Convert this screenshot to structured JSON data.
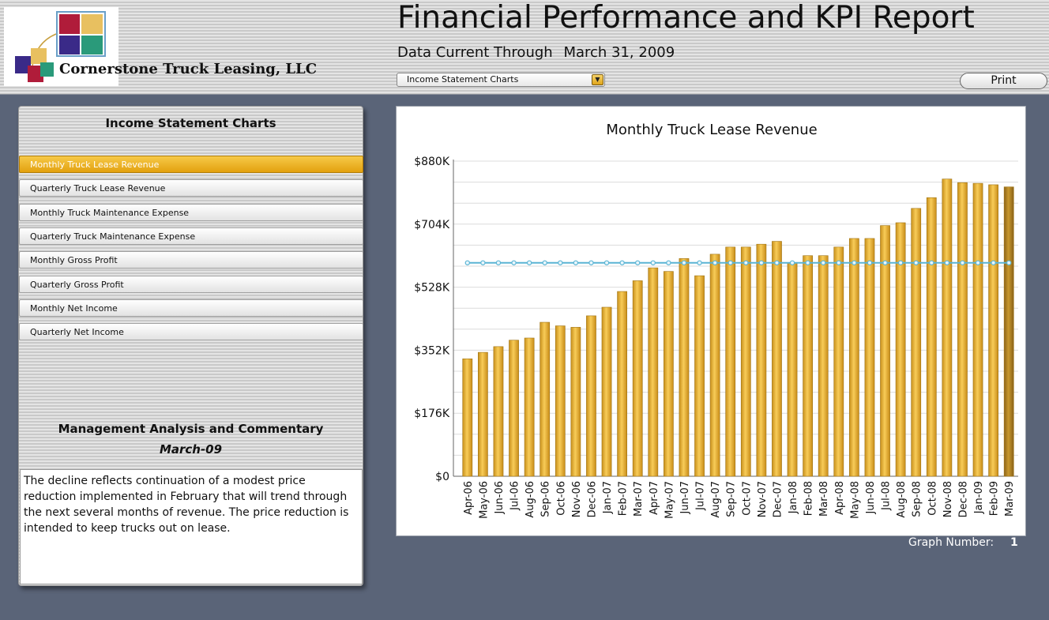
{
  "header": {
    "company_name": "Cornerstone Truck Leasing, LLC",
    "report_title": "Financial Performance and KPI Report",
    "data_current_label": "Data Current Through",
    "data_current_date": "March 31, 2009",
    "chart_select_value": "Income Statement Charts",
    "print_label": "Print"
  },
  "sidebar": {
    "title": "Income Statement Charts",
    "items": [
      {
        "label": "Monthly Truck Lease Revenue",
        "active": true
      },
      {
        "label": "Quarterly Truck Lease Revenue",
        "active": false
      },
      {
        "label": "Monthly Truck Maintenance Expense",
        "active": false
      },
      {
        "label": "Quarterly Truck Maintenance Expense",
        "active": false
      },
      {
        "label": "Monthly Gross Profit",
        "active": false
      },
      {
        "label": "Quarterly Gross Profit",
        "active": false
      },
      {
        "label": "Monthly Net Income",
        "active": false
      },
      {
        "label": "Quarterly Net Income",
        "active": false
      }
    ],
    "commentary_title": "Management Analysis and Commentary",
    "commentary_month": "March-09",
    "commentary_text": "The decline reflects continuation of a modest price reduction implemented in February that will trend through the next several months of revenue.  The price reduction is intended to keep trucks out on lease."
  },
  "chart_data": {
    "type": "bar",
    "title": "Monthly Truck Lease Revenue",
    "xlabel": "",
    "ylabel": "",
    "ylim": [
      0,
      880
    ],
    "y_ticks": [
      "$0",
      "$176K",
      "$352K",
      "$528K",
      "$704K",
      "$880K"
    ],
    "y_tick_values": [
      0,
      176,
      352,
      528,
      704,
      880
    ],
    "categories": [
      "Apr-06",
      "May-06",
      "Jun-06",
      "Jul-06",
      "Aug-06",
      "Sep-06",
      "Oct-06",
      "Nov-06",
      "Dec-06",
      "Jan-07",
      "Feb-07",
      "Mar-07",
      "Apr-07",
      "May-07",
      "Jun-07",
      "Jul-07",
      "Aug-07",
      "Sep-07",
      "Oct-07",
      "Nov-07",
      "Dec-07",
      "Jan-08",
      "Feb-08",
      "Mar-08",
      "Apr-08",
      "May-08",
      "Jun-08",
      "Jul-08",
      "Aug-08",
      "Sep-08",
      "Oct-08",
      "Nov-08",
      "Dec-08",
      "Jan-09",
      "Feb-09",
      "Mar-09"
    ],
    "values": [
      328,
      346,
      362,
      380,
      386,
      430,
      420,
      416,
      448,
      472,
      516,
      546,
      582,
      572,
      608,
      560,
      620,
      640,
      640,
      648,
      656,
      596,
      616,
      616,
      640,
      664,
      664,
      700,
      708,
      748,
      778,
      830,
      820,
      818,
      814,
      808
    ],
    "reference_line_value": 596,
    "colors": {
      "bar": "#e8b030",
      "bar_last": "#b8862a",
      "line": "#5ab4d4"
    },
    "grid": true
  },
  "footer": {
    "graph_number_label": "Graph Number:",
    "graph_number_value": "1"
  }
}
